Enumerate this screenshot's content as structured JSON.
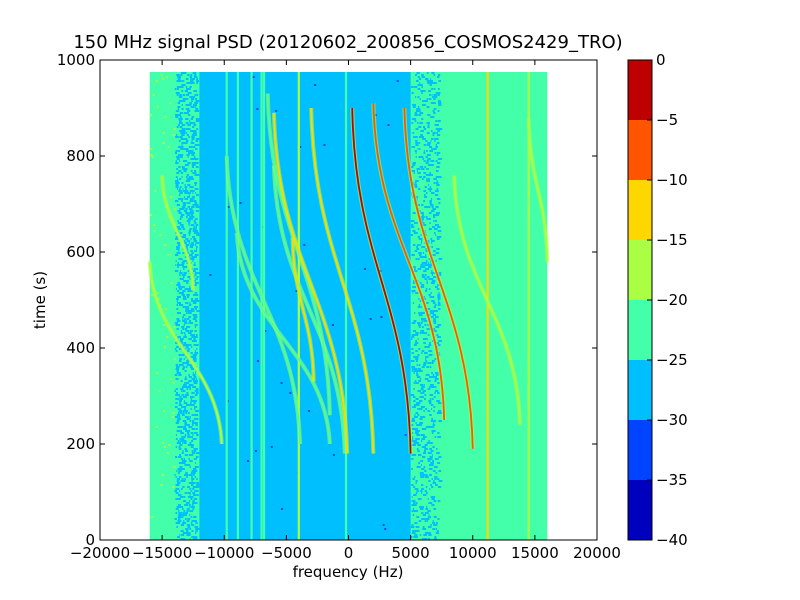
{
  "chart_data": {
    "type": "heatmap",
    "title": "150 MHz signal PSD (20120602_200856_COSMOS2429_TRO)",
    "xlabel": "frequency (Hz)",
    "ylabel": "time (s)",
    "xlim": [
      -20000,
      20000
    ],
    "ylim": [
      0,
      1000
    ],
    "x_ticks": [
      -20000,
      -15000,
      -10000,
      -5000,
      0,
      5000,
      10000,
      15000,
      20000
    ],
    "x_tick_labels": [
      "−20000",
      "−15000",
      "−10000",
      "−5000",
      "0",
      "5000",
      "10000",
      "15000",
      "20000"
    ],
    "y_ticks": [
      0,
      200,
      400,
      600,
      800,
      1000
    ],
    "y_tick_labels": [
      "0",
      "200",
      "400",
      "600",
      "800",
      "1000"
    ],
    "data_extent": {
      "x": [
        -16000,
        16000
      ],
      "y": [
        0,
        975
      ]
    },
    "colorbar": {
      "range": [
        -40,
        0
      ],
      "ticks": [
        0,
        -5,
        -10,
        -15,
        -20,
        -25,
        -30,
        -35,
        -40
      ],
      "tick_labels": [
        "0",
        "−5",
        "−10",
        "−15",
        "−20",
        "−25",
        "−30",
        "−35",
        "−40"
      ],
      "levels": [
        {
          "from": -40,
          "to": -35,
          "color": "#0000bf"
        },
        {
          "from": -35,
          "to": -30,
          "color": "#0044ff"
        },
        {
          "from": -30,
          "to": -25,
          "color": "#00bfff"
        },
        {
          "from": -25,
          "to": -20,
          "color": "#44ffaa"
        },
        {
          "from": -20,
          "to": -15,
          "color": "#aaff44"
        },
        {
          "from": -15,
          "to": -10,
          "color": "#ffd700"
        },
        {
          "from": -10,
          "to": -5,
          "color": "#ff5500"
        },
        {
          "from": -5,
          "to": 0,
          "color": "#bf0000"
        }
      ]
    },
    "vertical_lines": [
      {
        "f": -9800,
        "color": "#44ffaa"
      },
      {
        "f": -8900,
        "color": "#44ffaa"
      },
      {
        "f": -7800,
        "color": "#44ffaa"
      },
      {
        "f": -7000,
        "color": "#44ffaa"
      },
      {
        "f": -6800,
        "color": "#44ffaa"
      },
      {
        "f": -4000,
        "color": "#aaff44"
      },
      {
        "f": -200,
        "color": "#44ffaa"
      },
      {
        "f": 11200,
        "color": "#ffd700"
      },
      {
        "f": 14500,
        "color": "#aaff44"
      }
    ],
    "doppler_tracks": [
      {
        "f_top": -16000,
        "f_bottom": -10200,
        "t_top": 580,
        "t_bottom": 200,
        "color": "#aaff44"
      },
      {
        "f_top": -15000,
        "f_bottom": -12500,
        "t_top": 760,
        "t_bottom": 520,
        "color": "#aaff44"
      },
      {
        "f_top": -9800,
        "f_bottom": -3900,
        "t_top": 800,
        "t_bottom": 200,
        "color": "#44ffaa"
      },
      {
        "f_top": -9000,
        "f_bottom": -1500,
        "t_top": 640,
        "t_bottom": 200,
        "color": "#44ffaa"
      },
      {
        "f_top": -6000,
        "f_bottom": -300,
        "t_top": 780,
        "t_bottom": 180,
        "color": "#44ffaa"
      },
      {
        "f_top": -6500,
        "f_bottom": -1500,
        "t_top": 930,
        "t_bottom": 260,
        "color": "#44ffaa"
      },
      {
        "f_top": -6000,
        "f_bottom": -100,
        "t_top": 890,
        "t_bottom": 180,
        "color": "#ffd700"
      },
      {
        "f_top": -4500,
        "f_bottom": -2800,
        "t_top": 630,
        "t_bottom": 330,
        "color": "#ffd700"
      },
      {
        "f_top": -3000,
        "f_bottom": 2000,
        "t_top": 900,
        "t_bottom": 180,
        "color": "#ffd700"
      },
      {
        "f_top": 300,
        "f_bottom": 5000,
        "t_top": 900,
        "t_bottom": 180,
        "color": "#bf0000"
      },
      {
        "f_top": 2000,
        "f_bottom": 7700,
        "t_top": 910,
        "t_bottom": 250,
        "color": "#ff5500"
      },
      {
        "f_top": 4500,
        "f_bottom": 10000,
        "t_top": 900,
        "t_bottom": 190,
        "color": "#ff5500"
      },
      {
        "f_top": 8500,
        "f_bottom": 13800,
        "t_top": 760,
        "t_bottom": 240,
        "color": "#aaff44"
      },
      {
        "f_top": 14500,
        "f_bottom": 16000,
        "t_top": 880,
        "t_bottom": 580,
        "color": "#aaff44"
      }
    ]
  }
}
